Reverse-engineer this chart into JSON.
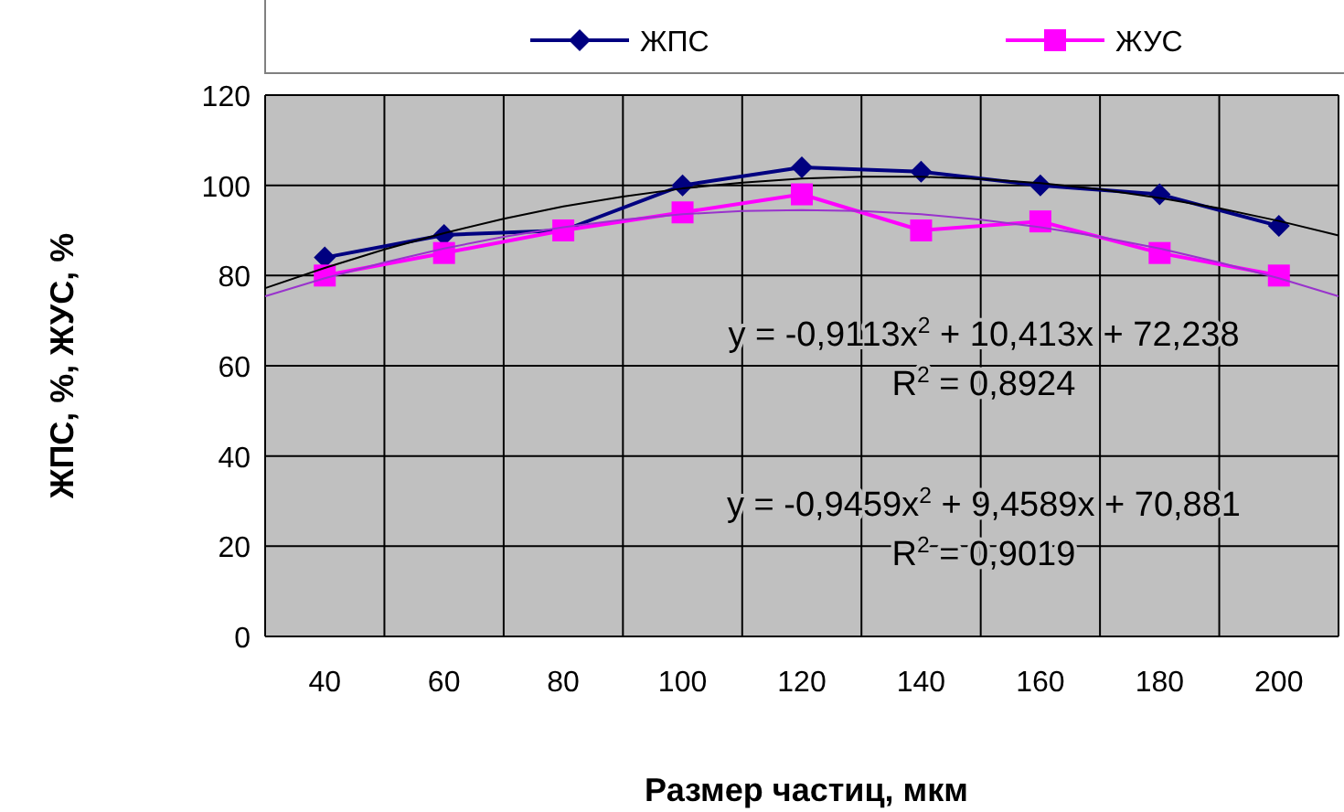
{
  "chart_data": {
    "type": "line",
    "xlabel": "Размер частиц, мкм",
    "ylabel": "ЖПС, %, ЖУС, %",
    "xlim": [
      30,
      210
    ],
    "xticks": [
      {
        "value": 30,
        "label": null
      },
      {
        "value": 40,
        "label": "40"
      },
      {
        "value": 50,
        "label": null
      },
      {
        "value": 60,
        "label": "60"
      },
      {
        "value": 70,
        "label": null
      },
      {
        "value": 80,
        "label": "80"
      },
      {
        "value": 90,
        "label": null
      },
      {
        "value": 100,
        "label": "100"
      },
      {
        "value": 110,
        "label": null
      },
      {
        "value": 120,
        "label": "120"
      },
      {
        "value": 130,
        "label": null
      },
      {
        "value": 140,
        "label": "140"
      },
      {
        "value": 150,
        "label": null
      },
      {
        "value": 160,
        "label": "160"
      },
      {
        "value": 170,
        "label": null
      },
      {
        "value": 180,
        "label": "180"
      },
      {
        "value": 190,
        "label": null
      },
      {
        "value": 200,
        "label": "200"
      },
      {
        "value": 210,
        "label": null
      }
    ],
    "ylim": [
      0,
      120
    ],
    "yticks": [
      0,
      20,
      40,
      60,
      80,
      100,
      120
    ],
    "grid": true,
    "legend": "top",
    "x": [
      40,
      60,
      80,
      100,
      120,
      140,
      160,
      180,
      200
    ],
    "series": [
      {
        "name": "ЖПС",
        "color": "#000080",
        "marker": "diamond",
        "values": [
          84,
          89,
          90,
          100,
          104,
          103,
          100,
          98,
          91
        ]
      },
      {
        "name": "ЖУС",
        "color": "#ff00ff",
        "marker": "square",
        "values": [
          80,
          85,
          90,
          94,
          98,
          90,
          92,
          85,
          80
        ]
      },
      {
        "color": "#000000",
        "marker": "none",
        "x": [
          30,
          40,
          50,
          60,
          70,
          80,
          90,
          100,
          110,
          120,
          130,
          140,
          150,
          160,
          170,
          180,
          190,
          200,
          210
        ],
        "values": [
          77.2,
          81.7,
          85.8,
          89.4,
          92.6,
          95.3,
          97.5,
          99.3,
          100.6,
          101.5,
          101.9,
          101.9,
          101.4,
          100.5,
          99.1,
          97.2,
          94.9,
          92.1,
          88.9
        ]
      },
      {
        "color": "#9933cc",
        "marker": "none",
        "x": [
          30,
          40,
          50,
          60,
          70,
          80,
          90,
          100,
          110,
          120,
          130,
          140,
          150,
          160,
          170,
          180,
          190,
          200,
          210
        ],
        "values": [
          75.4,
          79.4,
          82.9,
          86.0,
          88.6,
          90.7,
          92.4,
          93.6,
          94.3,
          94.5,
          94.3,
          93.6,
          92.4,
          90.7,
          88.6,
          86.0,
          82.9,
          79.4,
          75.4
        ]
      }
    ],
    "annotations": [
      "y = -0,9113x$^{2}$ + 10,413x + 72,238",
      "R$^{2}$ = 0,8924",
      "y = -0,9459x$^{2}$ + 9,4589x + 70,881",
      "R$^{2}$ = 0,9019"
    ]
  }
}
